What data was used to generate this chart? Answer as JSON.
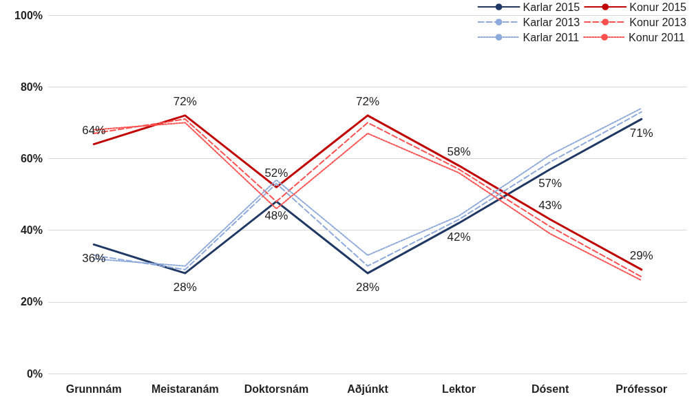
{
  "chart_data": {
    "type": "line",
    "categories": [
      "Grunnnám",
      "Meistaranám",
      "Doktorsnám",
      "Aðjúnkt",
      "Lektor",
      "Dósent",
      "Prófessor"
    ],
    "series": [
      {
        "name": "Karlar 2015",
        "color": "#1f3864",
        "line_style": "solid",
        "values": [
          36,
          28,
          48,
          28,
          42,
          57,
          71
        ],
        "value_labels": [
          "36%",
          "28%",
          "48%",
          "28%",
          "42%",
          "57%",
          "71%"
        ]
      },
      {
        "name": "Konur 2015",
        "color": "#c00000",
        "line_style": "solid",
        "values": [
          64,
          72,
          52,
          72,
          58,
          43,
          29
        ],
        "value_labels": [
          "64%",
          "72%",
          "52%",
          "72%",
          "58%",
          "43%",
          "29%"
        ]
      },
      {
        "name": "Karlar 2013",
        "color": "#8ea9db",
        "line_style": "dashed",
        "values": [
          33,
          29,
          53,
          30,
          43,
          59,
          73
        ]
      },
      {
        "name": "Konur 2013",
        "color": "#ff5050",
        "line_style": "dashed",
        "values": [
          67,
          71,
          48,
          70,
          57,
          41,
          27
        ]
      },
      {
        "name": "Karlar 2011",
        "color": "#8ea9db",
        "line_style": "dotted",
        "values": [
          32,
          30,
          54,
          33,
          44,
          61,
          74
        ]
      },
      {
        "name": "Konur 2011",
        "color": "#ff5050",
        "line_style": "dotted",
        "values": [
          68,
          70,
          46,
          67,
          56,
          39,
          26
        ]
      }
    ],
    "ylim": [
      0,
      100
    ],
    "yticks": [
      {
        "value": 0,
        "label": "0%"
      },
      {
        "value": 20,
        "label": "20%"
      },
      {
        "value": 40,
        "label": "40%"
      },
      {
        "value": 60,
        "label": "60%"
      },
      {
        "value": 80,
        "label": "80%"
      },
      {
        "value": 100,
        "label": "100%"
      }
    ],
    "grid": "y",
    "legend": "top right",
    "marker": "none"
  }
}
